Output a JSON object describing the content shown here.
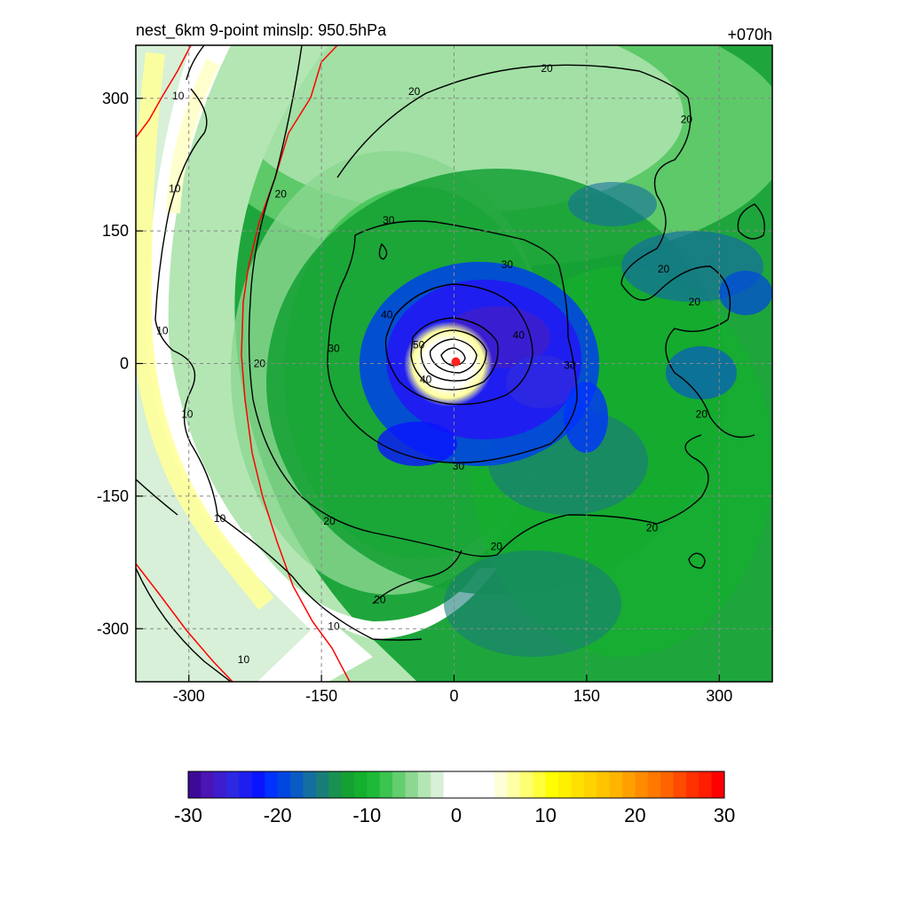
{
  "chart_data": {
    "type": "heatmap",
    "title": "nest_6km  9-point minslp: 950.5hPa",
    "forecast_hour_label": "+070h",
    "xlim": [
      -360,
      360
    ],
    "ylim": [
      -360,
      360
    ],
    "x_ticks": [
      -300,
      -150,
      0,
      150,
      300
    ],
    "y_ticks": [
      300,
      150,
      0,
      -150,
      -300
    ],
    "grid": true,
    "center_marker": {
      "x": 2,
      "y": 2,
      "color": "#ff2020"
    },
    "contour_labels": [
      {
        "text": "10",
        "x": -312,
        "y": 303
      },
      {
        "text": "10",
        "x": -316,
        "y": 198
      },
      {
        "text": "10",
        "x": -330,
        "y": 37
      },
      {
        "text": "10",
        "x": -302,
        "y": -57
      },
      {
        "text": "10",
        "x": -265,
        "y": -175
      },
      {
        "text": "10",
        "x": -238,
        "y": -335
      },
      {
        "text": "10",
        "x": -136,
        "y": -297
      },
      {
        "text": "20",
        "x": -45,
        "y": 308
      },
      {
        "text": "20",
        "x": 105,
        "y": 334
      },
      {
        "text": "20",
        "x": 263,
        "y": 276
      },
      {
        "text": "20",
        "x": -196,
        "y": 192
      },
      {
        "text": "20",
        "x": -220,
        "y": 0
      },
      {
        "text": "20",
        "x": -141,
        "y": -178
      },
      {
        "text": "20",
        "x": -84,
        "y": -267
      },
      {
        "text": "20",
        "x": 48,
        "y": -207
      },
      {
        "text": "20",
        "x": 224,
        "y": -186
      },
      {
        "text": "20",
        "x": 237,
        "y": 107
      },
      {
        "text": "20",
        "x": 272,
        "y": 70
      },
      {
        "text": "20",
        "x": 280,
        "y": -57
      },
      {
        "text": "30",
        "x": -74,
        "y": 162
      },
      {
        "text": "30",
        "x": 60,
        "y": 112
      },
      {
        "text": "30",
        "x": -136,
        "y": 17
      },
      {
        "text": "30",
        "x": 131,
        "y": -2
      },
      {
        "text": "30",
        "x": 5,
        "y": -116
      },
      {
        "text": "40",
        "x": -76,
        "y": 55
      },
      {
        "text": "40",
        "x": -32,
        "y": -18
      },
      {
        "text": "40",
        "x": 73,
        "y": 32
      },
      {
        "text": "50",
        "x": -40,
        "y": 21
      }
    ],
    "colorbar": {
      "min": -30,
      "max": 30,
      "tick_labels": [
        "-30",
        "-20",
        "-10",
        "0",
        "10",
        "20",
        "30"
      ],
      "colors": [
        "#3c0a96",
        "#4b14b4",
        "#3c1ecd",
        "#2d28e1",
        "#1e1ef0",
        "#0a14ff",
        "#0032ff",
        "#0046e1",
        "#0a5ac3",
        "#146ea0",
        "#197d78",
        "#199150",
        "#14a032",
        "#14af2d",
        "#1eb937",
        "#3cc350",
        "#64cd6e",
        "#8cd791",
        "#b4e6b4",
        "#d7f0d7",
        "#ffffff",
        "#ffffff",
        "#ffffff",
        "#ffffff",
        "#ffffd7",
        "#ffffa5",
        "#ffff73",
        "#ffff3c",
        "#ffff00",
        "#fff000",
        "#ffe100",
        "#ffd200",
        "#ffc300",
        "#ffb400",
        "#ffa000",
        "#ff8c00",
        "#ff7800",
        "#ff6400",
        "#ff4b00",
        "#ff3200",
        "#ff1e00",
        "#ff0000"
      ]
    }
  }
}
